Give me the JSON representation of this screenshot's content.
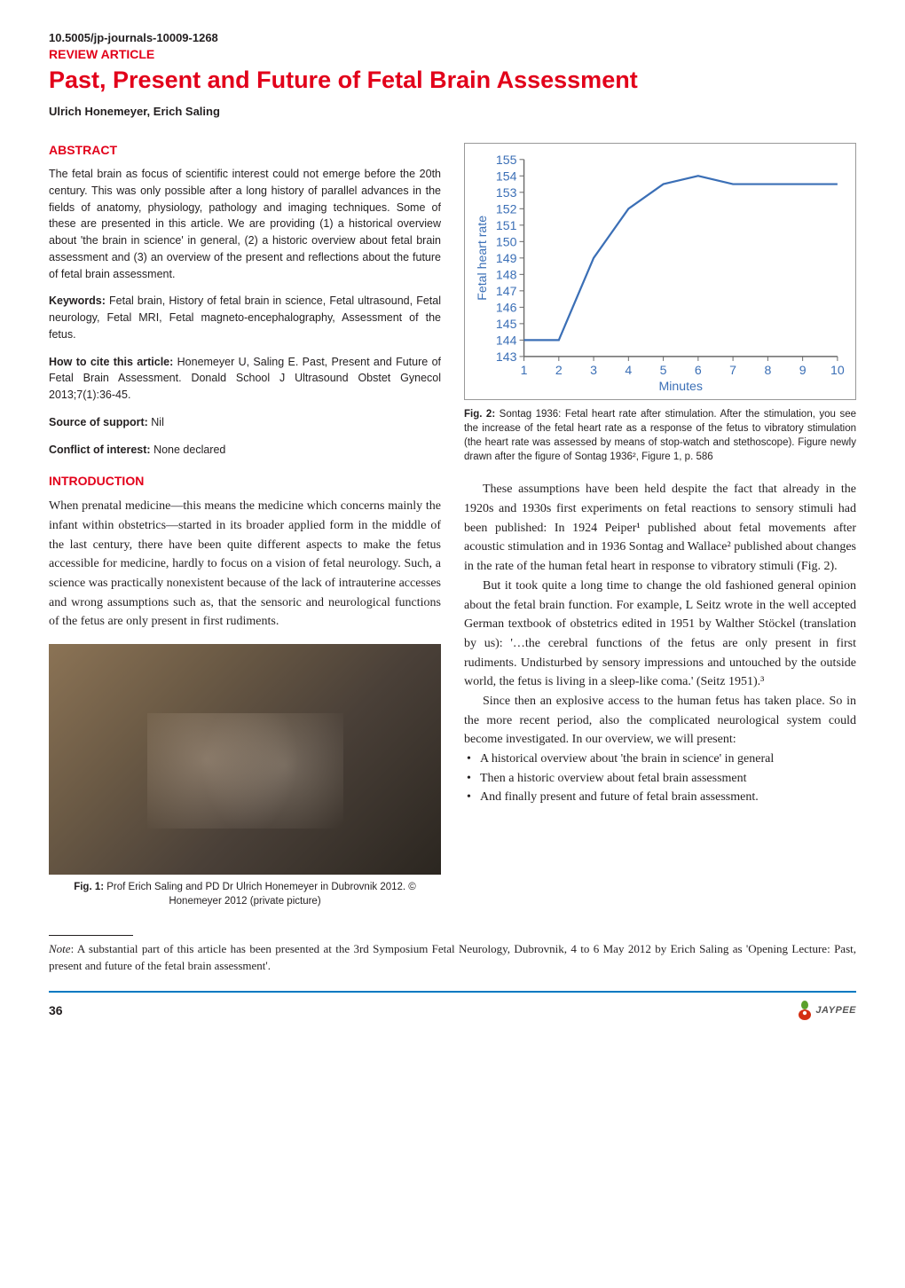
{
  "doi": "10.5005/jp-journals-10009-1268",
  "article_type": "REVIEW ARTICLE",
  "title": "Past, Present and Future of Fetal Brain Assessment",
  "authors": "Ulrich Honemeyer, Erich Saling",
  "abstract": {
    "head": "ABSTRACT",
    "p1": "The fetal brain as focus of scientific interest could not emerge before the 20th century. This was only possible after a long history of parallel advances in the fields of anatomy, physiology, pathology and imaging techniques. Some of these are presented in this article. We are providing (1) a historical overview about 'the brain in science' in general, (2) a historic overview about fetal brain assessment and (3) an overview of the present and reflections about the future of fetal brain assessment.",
    "kw_label": "Keywords: ",
    "kw_text": "Fetal brain, History of fetal brain in science, Fetal ultrasound, Fetal neurology, Fetal MRI, Fetal magneto-encephalography, Assessment of the fetus.",
    "cite_label": "How to cite this article: ",
    "cite_text": "Honemeyer U, Saling E. Past, Present and Future of Fetal Brain Assessment. Donald School J Ultrasound Obstet Gynecol 2013;7(1):36-45.",
    "support_label": "Source of support: ",
    "support_text": "Nil",
    "conflict_label": "Conflict of interest: ",
    "conflict_text": "None declared"
  },
  "intro": {
    "head": "INTRODUCTION",
    "p1": "When prenatal medicine—this means the medicine which concerns mainly the infant within obstetrics—started in its broader applied form in the middle of the last century, there have been quite different aspects to make the fetus accessible for medicine, hardly to focus on a vision of fetal neurology. Such, a science was practically nonexistent because of the lack of intrauterine accesses and wrong assumptions such as, that the sensoric and neurological functions of the fetus are only present in first rudiments."
  },
  "fig1": {
    "caption_bold": "Fig. 1: ",
    "caption_text": "Prof Erich Saling and PD Dr Ulrich Honemeyer in Dubrovnik 2012. © Honemeyer 2012 (private picture)"
  },
  "fig2": {
    "caption_bold": "Fig. 2: ",
    "caption_text": "Sontag 1936: Fetal heart rate after stimulation. After the stimulation, you see the increase of the fetal heart rate as a response of the fetus to vibratory stimulation (the heart rate was assessed by means of stop-watch and stethoscope). Figure newly drawn after the figure of Sontag 1936², Figure 1, p. 586",
    "chart": {
      "type": "line",
      "x": [
        1,
        2,
        3,
        4,
        5,
        6,
        7,
        8,
        9,
        10
      ],
      "y": [
        144,
        144,
        149,
        152,
        153.5,
        154,
        153.5,
        153.5,
        153.5,
        153.5
      ],
      "xlim": [
        1,
        10
      ],
      "ylim": [
        143,
        155
      ],
      "ytick_step": 1,
      "xtick_step": 1,
      "xlabel": "Minutes",
      "ylabel": "Fetal heart rate",
      "line_color": "#3b6fb6",
      "line_width": 2.2,
      "background_color": "#ffffff",
      "axis_color": "#6a6a6a",
      "tick_font_color": "#3b6fb6",
      "tick_fontsize": 14,
      "label_font_color": "#3b6fb6",
      "label_fontsize": 14
    }
  },
  "right_body": {
    "p1": "These assumptions have been held despite the fact that already in the 1920s and 1930s first experiments on fetal reactions to sensory stimuli had been published: In 1924 Peiper¹ published about fetal movements after acoustic stimulation and in 1936 Sontag and Wallace² published about changes in the rate of the human fetal heart in response to vibratory stimuli (Fig. 2).",
    "p2": "But it took quite a long time to change the old fashioned general opinion about the fetal brain function. For example, L Seitz wrote in the well accepted German textbook of obstetrics edited in 1951 by Walther Stöckel (translation by us): '…the cerebral functions of the fetus are only present in first rudiments. Undisturbed by sensory impressions and untouched by the outside world, the fetus is living in a sleep-like coma.' (Seitz 1951).³",
    "p3": "Since then an explosive access to the human fetus has taken place. So in the more recent period, also the complicated neurological system could become investigated. In our overview, we will present:",
    "b1": "A historical overview about 'the brain in science' in general",
    "b2": "Then a historic overview about fetal brain assessment",
    "b3": "And finally present and future of fetal brain assessment."
  },
  "footnote": {
    "label": "Note",
    "text": ": A substantial part of this article has been presented at the 3rd Symposium Fetal Neurology, Dubrovnik, 4 to 6 May 2012 by Erich Saling as 'Opening Lecture: Past, present and future of the fetal brain assessment'."
  },
  "footer": {
    "page": "36",
    "publisher": "JAYPEE"
  }
}
